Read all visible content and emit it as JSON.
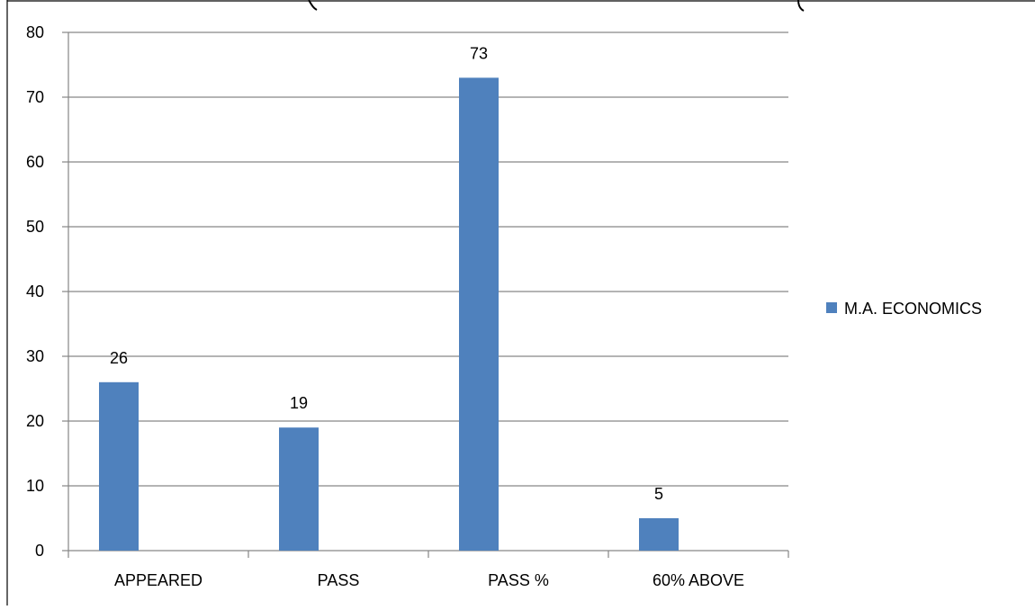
{
  "chart_data": {
    "type": "bar",
    "categories": [
      "APPEARED",
      "PASS",
      "PASS %",
      "60% ABOVE"
    ],
    "series": [
      {
        "name": "M.A. ECONOMICS",
        "values": [
          26,
          19,
          73,
          5
        ],
        "color": "#4f81bd"
      }
    ],
    "data_labels": [
      "26",
      "19",
      "73",
      "5"
    ],
    "ylim": [
      0,
      80
    ],
    "y_ticks": [
      "0",
      "10",
      "20",
      "30",
      "40",
      "50",
      "60",
      "70",
      "80"
    ],
    "grid": true,
    "gridline_color": "#868686",
    "legend_position": "right",
    "title": "",
    "xlabel": "",
    "ylabel": ""
  }
}
